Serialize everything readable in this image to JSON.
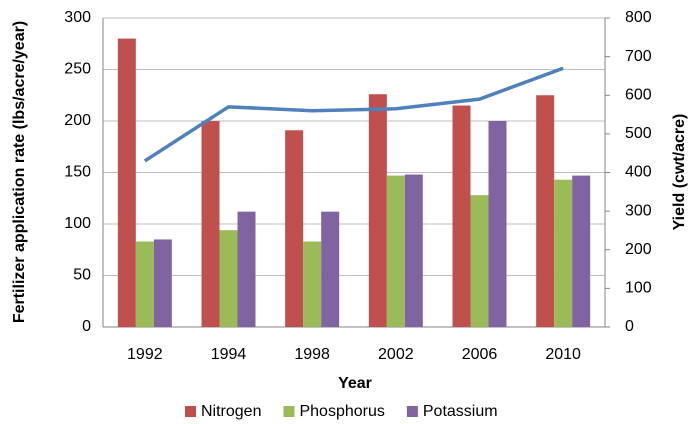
{
  "chart_data": {
    "type": "bar",
    "xlabel": "Year",
    "ylabel": "Fertilizer application rate (lbs/acre/year)",
    "y2label": "Yield (cwt/acre)",
    "categories": [
      "1992",
      "1994",
      "1998",
      "2002",
      "2006",
      "2010"
    ],
    "series": [
      {
        "name": "Nitrogen",
        "color": "#c0504d",
        "values": [
          280,
          200,
          191,
          226,
          215,
          225
        ]
      },
      {
        "name": "Phosphorus",
        "color": "#9bbb59",
        "values": [
          83,
          94,
          83,
          147,
          128,
          143
        ]
      },
      {
        "name": "Potassium",
        "color": "#8064a2",
        "values": [
          85,
          112,
          112,
          148,
          200,
          147
        ]
      },
      {
        "type": "line",
        "axis": "y2",
        "color": "#4f81bd",
        "values": [
          430,
          570,
          560,
          565,
          590,
          670
        ]
      }
    ],
    "ylim": [
      0,
      300
    ],
    "yticks": [
      0,
      50,
      100,
      150,
      200,
      250,
      300
    ],
    "y2lim": [
      0,
      800
    ],
    "y2ticks": [
      0,
      100,
      200,
      300,
      400,
      500,
      600,
      700,
      800
    ],
    "grid": true,
    "legend": "bottom"
  }
}
